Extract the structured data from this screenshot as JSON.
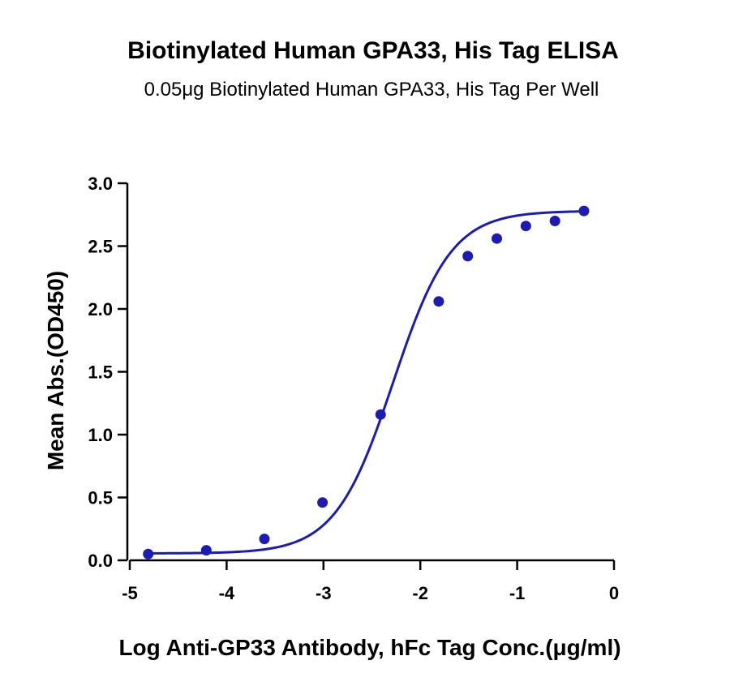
{
  "chart_data": {
    "type": "scatter",
    "title": "Biotinylated Human GPA33, His Tag ELISA",
    "subtitle": "0.05μg Biotinylated Human GPA33, His Tag Per Well",
    "xlabel": "Log Anti-GP33 Antibody, hFc Tag Conc.(μg/ml)",
    "ylabel": "Mean Abs.(OD450)",
    "xlim": [
      -5,
      0
    ],
    "ylim": [
      0,
      3
    ],
    "x_ticks": [
      -5,
      -4,
      -3,
      -2,
      -1,
      0
    ],
    "x_tick_labels": [
      "-5",
      "-4",
      "-3",
      "-2",
      "-1",
      "0"
    ],
    "y_ticks": [
      0,
      0.5,
      1,
      1.5,
      2,
      2.5,
      3
    ],
    "y_tick_labels": [
      "0.0",
      "0.5",
      "1.0",
      "1.5",
      "2.0",
      "2.5",
      "3.0"
    ],
    "grid": false,
    "color": "#1c1cb4",
    "series": [
      {
        "x": [
          -4.81,
          -4.21,
          -3.61,
          -3.01,
          -2.41,
          -1.81,
          -1.51,
          -1.21,
          -0.91,
          -0.61,
          -0.31
        ],
        "y": [
          0.05,
          0.08,
          0.17,
          0.46,
          1.16,
          2.06,
          2.42,
          2.56,
          2.66,
          2.7,
          2.78
        ]
      }
    ],
    "fit": {
      "type": "4PL",
      "bottom": 0.055,
      "top": 2.78,
      "logEC50": -2.28,
      "hill": 1.45
    }
  }
}
